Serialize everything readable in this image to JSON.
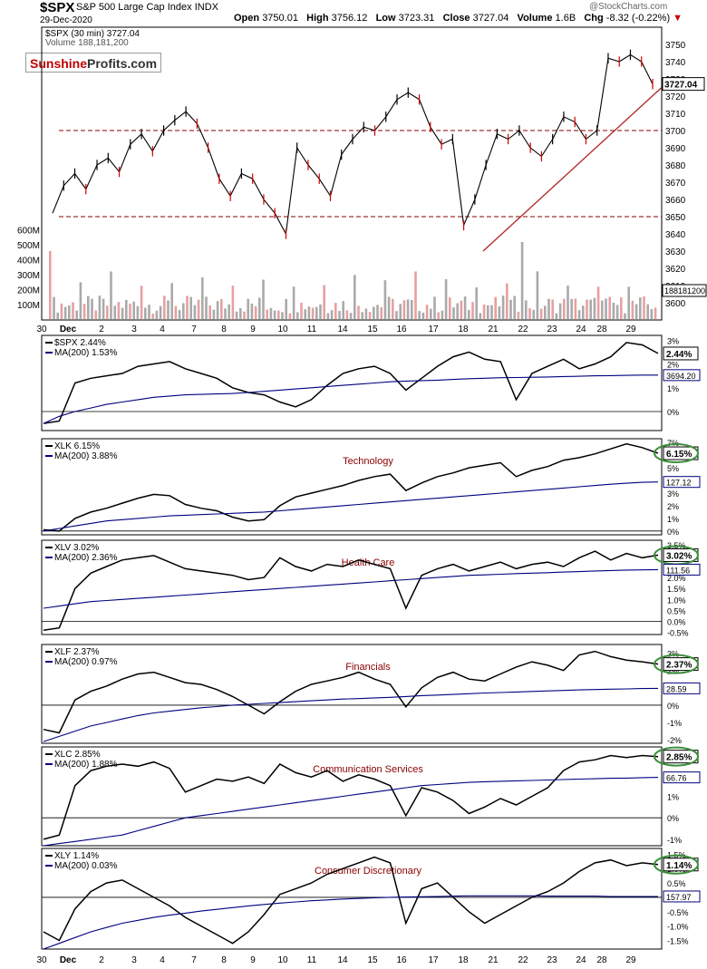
{
  "header": {
    "symbol": "$SPX",
    "name": "S&P 500 Large Cap Index",
    "exchange": "INDX",
    "date": "29-Dec-2020",
    "open_label": "Open",
    "open": "3750.01",
    "high_label": "High",
    "high": "3756.12",
    "low_label": "Low",
    "low": "3723.31",
    "close_label": "Close",
    "close": "3727.04",
    "volume_label": "Volume",
    "volume": "1.6B",
    "chg_label": "Chg",
    "chg": "-8.32 (-0.22%)",
    "watermark": "@StockCharts.com"
  },
  "logo": {
    "part1": "Sunshine",
    "part2": "Profits.com"
  },
  "colors": {
    "up": "#000000",
    "down": "#cc0000",
    "ma": "#000080",
    "hline": "#8b0000",
    "trend": "#b22222",
    "vol_up": "#aaaaaa",
    "vol_down": "#e8a0a0",
    "ellipse": "#3a8f3a"
  },
  "chart_data": [
    {
      "type": "line",
      "panel": "price",
      "legend": [
        "$SPX (30 min) 3727.04",
        "Volume 188,181,200"
      ],
      "x_tick_labels": [
        "30",
        "Dec",
        "2",
        "3",
        "4",
        "7",
        "8",
        "9",
        "10",
        "11",
        "14",
        "15",
        "16",
        "17",
        "18",
        "21",
        "22",
        "23",
        "24",
        "28",
        "29"
      ],
      "ylim": [
        3590,
        3760
      ],
      "y_ticks": [
        3600,
        3610,
        3620,
        3630,
        3640,
        3650,
        3660,
        3670,
        3680,
        3690,
        3700,
        3710,
        3720,
        3730,
        3740,
        3750
      ],
      "last_value_label": "3727.04",
      "volume_last_label": "188181200",
      "volume_ticks": [
        "100M",
        "200M",
        "300M",
        "400M",
        "500M",
        "600M"
      ],
      "horizontal_levels": [
        3700,
        3650
      ],
      "trend_line": {
        "x": [
          "21",
          "29"
        ],
        "y": [
          3630,
          3725
        ]
      },
      "close_path": [
        [
          0,
          3652
        ],
        [
          1,
          3668
        ],
        [
          2,
          3675
        ],
        [
          3,
          3666
        ],
        [
          4,
          3680
        ],
        [
          5,
          3684
        ],
        [
          6,
          3676
        ],
        [
          7,
          3692
        ],
        [
          8,
          3698
        ],
        [
          9,
          3688
        ],
        [
          10,
          3700
        ],
        [
          11,
          3706
        ],
        [
          12,
          3711
        ],
        [
          13,
          3704
        ],
        [
          14,
          3690
        ],
        [
          15,
          3672
        ],
        [
          16,
          3662
        ],
        [
          17,
          3675
        ],
        [
          18,
          3672
        ],
        [
          19,
          3660
        ],
        [
          20,
          3652
        ],
        [
          21,
          3640
        ],
        [
          22,
          3690
        ],
        [
          23,
          3680
        ],
        [
          24,
          3672
        ],
        [
          25,
          3662
        ],
        [
          26,
          3686
        ],
        [
          27,
          3695
        ],
        [
          28,
          3702
        ],
        [
          29,
          3700
        ],
        [
          30,
          3708
        ],
        [
          31,
          3718
        ],
        [
          32,
          3722
        ],
        [
          33,
          3718
        ],
        [
          34,
          3702
        ],
        [
          35,
          3692
        ],
        [
          36,
          3695
        ],
        [
          37,
          3645
        ],
        [
          38,
          3660
        ],
        [
          39,
          3680
        ],
        [
          40,
          3698
        ],
        [
          41,
          3695
        ],
        [
          42,
          3700
        ],
        [
          43,
          3690
        ],
        [
          44,
          3685
        ],
        [
          45,
          3695
        ],
        [
          46,
          3708
        ],
        [
          47,
          3705
        ],
        [
          48,
          3695
        ],
        [
          49,
          3700
        ],
        [
          50,
          3742
        ],
        [
          51,
          3740
        ],
        [
          52,
          3744
        ],
        [
          53,
          3740
        ],
        [
          54,
          3727
        ]
      ]
    },
    {
      "type": "line",
      "panel": "relative",
      "legend": [
        "$SPX 2.44%",
        "MA(200) 1.53%"
      ],
      "y_ticks": [
        "3%",
        "2%",
        "1%",
        "0%"
      ],
      "ylim": [
        -0.8,
        3.2
      ],
      "last_labels": [
        "2.44%",
        "3694.20"
      ],
      "series": [
        {
          "name": "$SPX",
          "values": [
            -0.5,
            -0.4,
            1.2,
            1.4,
            1.5,
            1.6,
            1.9,
            2.0,
            2.1,
            1.8,
            1.6,
            1.4,
            1.0,
            0.8,
            0.7,
            0.4,
            0.2,
            0.5,
            1.1,
            1.6,
            1.8,
            1.9,
            1.6,
            0.9,
            1.4,
            1.9,
            2.3,
            2.5,
            2.2,
            2.1,
            0.5,
            1.6,
            1.9,
            2.2,
            1.8,
            2.0,
            2.3,
            2.9,
            2.8,
            2.44
          ]
        },
        {
          "name": "MA(200)",
          "values": [
            -0.5,
            -0.2,
            0.0,
            0.15,
            0.3,
            0.4,
            0.5,
            0.6,
            0.65,
            0.7,
            0.72,
            0.74,
            0.76,
            0.8,
            0.85,
            0.9,
            0.95,
            1.0,
            1.05,
            1.1,
            1.15,
            1.2,
            1.25,
            1.28,
            1.3,
            1.32,
            1.35,
            1.38,
            1.4,
            1.42,
            1.43,
            1.44,
            1.45,
            1.47,
            1.48,
            1.5,
            1.51,
            1.52,
            1.53,
            1.53
          ]
        }
      ]
    },
    {
      "type": "line",
      "panel": "relative",
      "title": "Technology",
      "legend": [
        "XLK 6.15%",
        "MA(200) 3.88%"
      ],
      "y_ticks": [
        "7%",
        "6%",
        "5%",
        "4%",
        "3%",
        "2%",
        "1%",
        "0%"
      ],
      "ylim": [
        -0.3,
        7.3
      ],
      "last_labels": [
        "6.15%",
        "127.12"
      ],
      "series": [
        {
          "name": "XLK",
          "values": [
            0.1,
            0.0,
            1.0,
            1.5,
            1.8,
            2.2,
            2.6,
            2.9,
            2.8,
            2.1,
            1.8,
            1.6,
            1.1,
            0.8,
            0.9,
            2.0,
            2.7,
            3.0,
            3.3,
            3.6,
            4.0,
            4.3,
            4.5,
            3.2,
            3.8,
            4.3,
            4.6,
            5.0,
            5.2,
            5.4,
            4.3,
            4.8,
            5.1,
            5.6,
            5.8,
            6.1,
            6.5,
            6.9,
            6.6,
            6.15
          ]
        },
        {
          "name": "MA(200)",
          "values": [
            0.0,
            0.2,
            0.4,
            0.6,
            0.8,
            0.9,
            1.0,
            1.1,
            1.2,
            1.25,
            1.3,
            1.35,
            1.4,
            1.45,
            1.5,
            1.6,
            1.7,
            1.8,
            1.9,
            2.0,
            2.1,
            2.2,
            2.3,
            2.4,
            2.5,
            2.6,
            2.7,
            2.8,
            2.9,
            3.0,
            3.1,
            3.2,
            3.3,
            3.4,
            3.5,
            3.6,
            3.7,
            3.78,
            3.85,
            3.88
          ]
        }
      ]
    },
    {
      "type": "line",
      "panel": "relative",
      "title": "Health Care",
      "legend": [
        "XLV 3.02%",
        "MA(200) 2.36%"
      ],
      "y_ticks": [
        "3.5%",
        "3.0%",
        "2.5%",
        "2.0%",
        "1.5%",
        "1.0%",
        "0.5%",
        "0.0%",
        "-0.5%"
      ],
      "ylim": [
        -0.6,
        3.7
      ],
      "last_labels": [
        "3.02%",
        "111.56"
      ],
      "series": [
        {
          "name": "XLV",
          "values": [
            -0.4,
            -0.3,
            1.5,
            2.2,
            2.5,
            2.8,
            2.9,
            3.0,
            2.7,
            2.4,
            2.3,
            2.2,
            2.1,
            1.9,
            2.0,
            2.9,
            2.5,
            2.3,
            2.6,
            2.5,
            2.8,
            2.6,
            2.4,
            0.6,
            2.1,
            2.4,
            2.6,
            2.3,
            2.5,
            2.7,
            2.4,
            2.6,
            2.7,
            2.5,
            2.9,
            3.2,
            2.8,
            3.1,
            2.9,
            3.02
          ]
        },
        {
          "name": "MA(200)",
          "values": [
            0.6,
            0.7,
            0.8,
            0.9,
            0.95,
            1.0,
            1.05,
            1.1,
            1.15,
            1.2,
            1.25,
            1.3,
            1.35,
            1.4,
            1.45,
            1.5,
            1.55,
            1.6,
            1.65,
            1.7,
            1.75,
            1.8,
            1.85,
            1.9,
            1.95,
            2.0,
            2.05,
            2.1,
            2.12,
            2.15,
            2.18,
            2.2,
            2.22,
            2.25,
            2.27,
            2.3,
            2.32,
            2.34,
            2.35,
            2.36
          ]
        }
      ]
    },
    {
      "type": "line",
      "panel": "relative",
      "title": "Financials",
      "legend": [
        "XLF 2.37%",
        "MA(200) 0.97%"
      ],
      "y_ticks": [
        "3%",
        "2%",
        "1%",
        "0%",
        "-1%",
        "-2%"
      ],
      "ylim": [
        -2.2,
        3.5
      ],
      "last_labels": [
        "2.37%",
        "28.59"
      ],
      "series": [
        {
          "name": "XLF",
          "values": [
            -1.4,
            -1.6,
            0.3,
            0.8,
            1.1,
            1.5,
            1.8,
            1.9,
            1.6,
            1.3,
            1.2,
            0.9,
            0.5,
            0.0,
            -0.5,
            0.2,
            0.8,
            1.2,
            1.4,
            1.6,
            1.9,
            1.5,
            1.2,
            -0.1,
            1.0,
            1.6,
            1.9,
            1.5,
            1.4,
            1.8,
            2.2,
            2.5,
            2.3,
            2.0,
            2.9,
            3.1,
            2.8,
            2.6,
            2.5,
            2.37
          ]
        },
        {
          "name": "MA(200)",
          "values": [
            -2.1,
            -1.8,
            -1.5,
            -1.2,
            -1.0,
            -0.8,
            -0.6,
            -0.45,
            -0.35,
            -0.25,
            -0.15,
            -0.08,
            0.0,
            0.05,
            0.1,
            0.15,
            0.2,
            0.25,
            0.3,
            0.35,
            0.38,
            0.42,
            0.45,
            0.5,
            0.55,
            0.58,
            0.62,
            0.66,
            0.7,
            0.73,
            0.76,
            0.79,
            0.82,
            0.85,
            0.88,
            0.9,
            0.92,
            0.94,
            0.96,
            0.97
          ]
        }
      ]
    },
    {
      "type": "line",
      "panel": "relative",
      "title": "Communication Services",
      "legend": [
        "XLC 2.85%",
        "MA(200) 1.88%"
      ],
      "y_ticks": [
        "3%",
        "2%",
        "1%",
        "0%",
        "-1%"
      ],
      "ylim": [
        -1.3,
        3.3
      ],
      "last_labels": [
        "2.85%",
        "66.76"
      ],
      "series": [
        {
          "name": "XLC",
          "values": [
            -1.0,
            -0.8,
            1.5,
            2.2,
            2.4,
            2.5,
            2.4,
            2.6,
            2.3,
            1.2,
            1.5,
            1.8,
            1.7,
            1.9,
            1.6,
            2.5,
            2.1,
            1.9,
            2.2,
            1.7,
            2.0,
            1.8,
            1.5,
            0.1,
            1.4,
            1.2,
            0.8,
            0.2,
            0.5,
            0.9,
            0.6,
            1.0,
            1.4,
            2.2,
            2.6,
            2.7,
            2.9,
            2.8,
            2.9,
            2.85
          ]
        },
        {
          "name": "MA(200)",
          "values": [
            -1.3,
            -1.2,
            -1.1,
            -1.0,
            -0.9,
            -0.8,
            -0.6,
            -0.4,
            -0.2,
            0.0,
            0.1,
            0.2,
            0.3,
            0.4,
            0.5,
            0.6,
            0.7,
            0.8,
            0.9,
            1.0,
            1.1,
            1.2,
            1.3,
            1.4,
            1.5,
            1.55,
            1.6,
            1.65,
            1.68,
            1.7,
            1.72,
            1.74,
            1.76,
            1.78,
            1.8,
            1.82,
            1.84,
            1.85,
            1.87,
            1.88
          ]
        }
      ]
    },
    {
      "type": "line",
      "panel": "relative",
      "title": "Consumer Discretionary",
      "legend": [
        "XLY 1.14%",
        "MA(200) 0.03%"
      ],
      "y_ticks": [
        "1.5%",
        "1.0%",
        "0.5%",
        "0.0%",
        "-0.5%",
        "-1.0%",
        "-1.5%"
      ],
      "ylim": [
        -1.8,
        1.7
      ],
      "last_labels": [
        "1.14%",
        "157.97"
      ],
      "series": [
        {
          "name": "XLY",
          "values": [
            -1.2,
            -1.5,
            -0.4,
            0.2,
            0.5,
            0.6,
            0.3,
            0.0,
            -0.3,
            -0.7,
            -1.0,
            -1.3,
            -1.6,
            -1.2,
            -0.6,
            0.1,
            0.3,
            0.5,
            0.8,
            1.0,
            1.2,
            1.4,
            1.2,
            -0.9,
            0.3,
            0.5,
            0.0,
            -0.5,
            -0.9,
            -0.6,
            -0.3,
            0.0,
            0.2,
            0.5,
            0.9,
            1.2,
            1.3,
            1.1,
            1.2,
            1.14
          ]
        },
        {
          "name": "MA(200)",
          "values": [
            -1.8,
            -1.6,
            -1.4,
            -1.2,
            -1.05,
            -0.9,
            -0.8,
            -0.7,
            -0.62,
            -0.55,
            -0.48,
            -0.42,
            -0.36,
            -0.3,
            -0.25,
            -0.2,
            -0.16,
            -0.12,
            -0.09,
            -0.06,
            -0.04,
            -0.02,
            0.0,
            0.01,
            0.02,
            0.03,
            0.04,
            0.05,
            0.05,
            0.05,
            0.05,
            0.05,
            0.04,
            0.04,
            0.04,
            0.04,
            0.03,
            0.03,
            0.03,
            0.03
          ]
        }
      ]
    }
  ]
}
